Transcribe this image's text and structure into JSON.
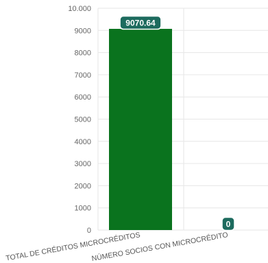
{
  "chart_data": {
    "type": "bar",
    "categories": [
      "TOTAL DE CRÉDITOS MICROCRÉDITOS",
      "NÚMERO SOCIOS CON MICROCRÉDITO"
    ],
    "values": [
      9070.64,
      0
    ],
    "data_labels": [
      "9070.64",
      "0"
    ],
    "ylim": [
      0,
      10000
    ],
    "yticks": [
      0,
      1000,
      2000,
      3000,
      4000,
      5000,
      6000,
      7000,
      8000,
      9000,
      10000
    ],
    "ytick_labels": [
      "0",
      "1000",
      "2000",
      "3000",
      "4000",
      "5000",
      "6000",
      "7000",
      "8000",
      "9000",
      "10.000"
    ],
    "grid": true,
    "title": "",
    "xlabel": "",
    "ylabel": "",
    "colors": {
      "bar": "#0a731e",
      "data_label_bg": "#1d6b5e",
      "grid": "#e6e6e6"
    }
  }
}
